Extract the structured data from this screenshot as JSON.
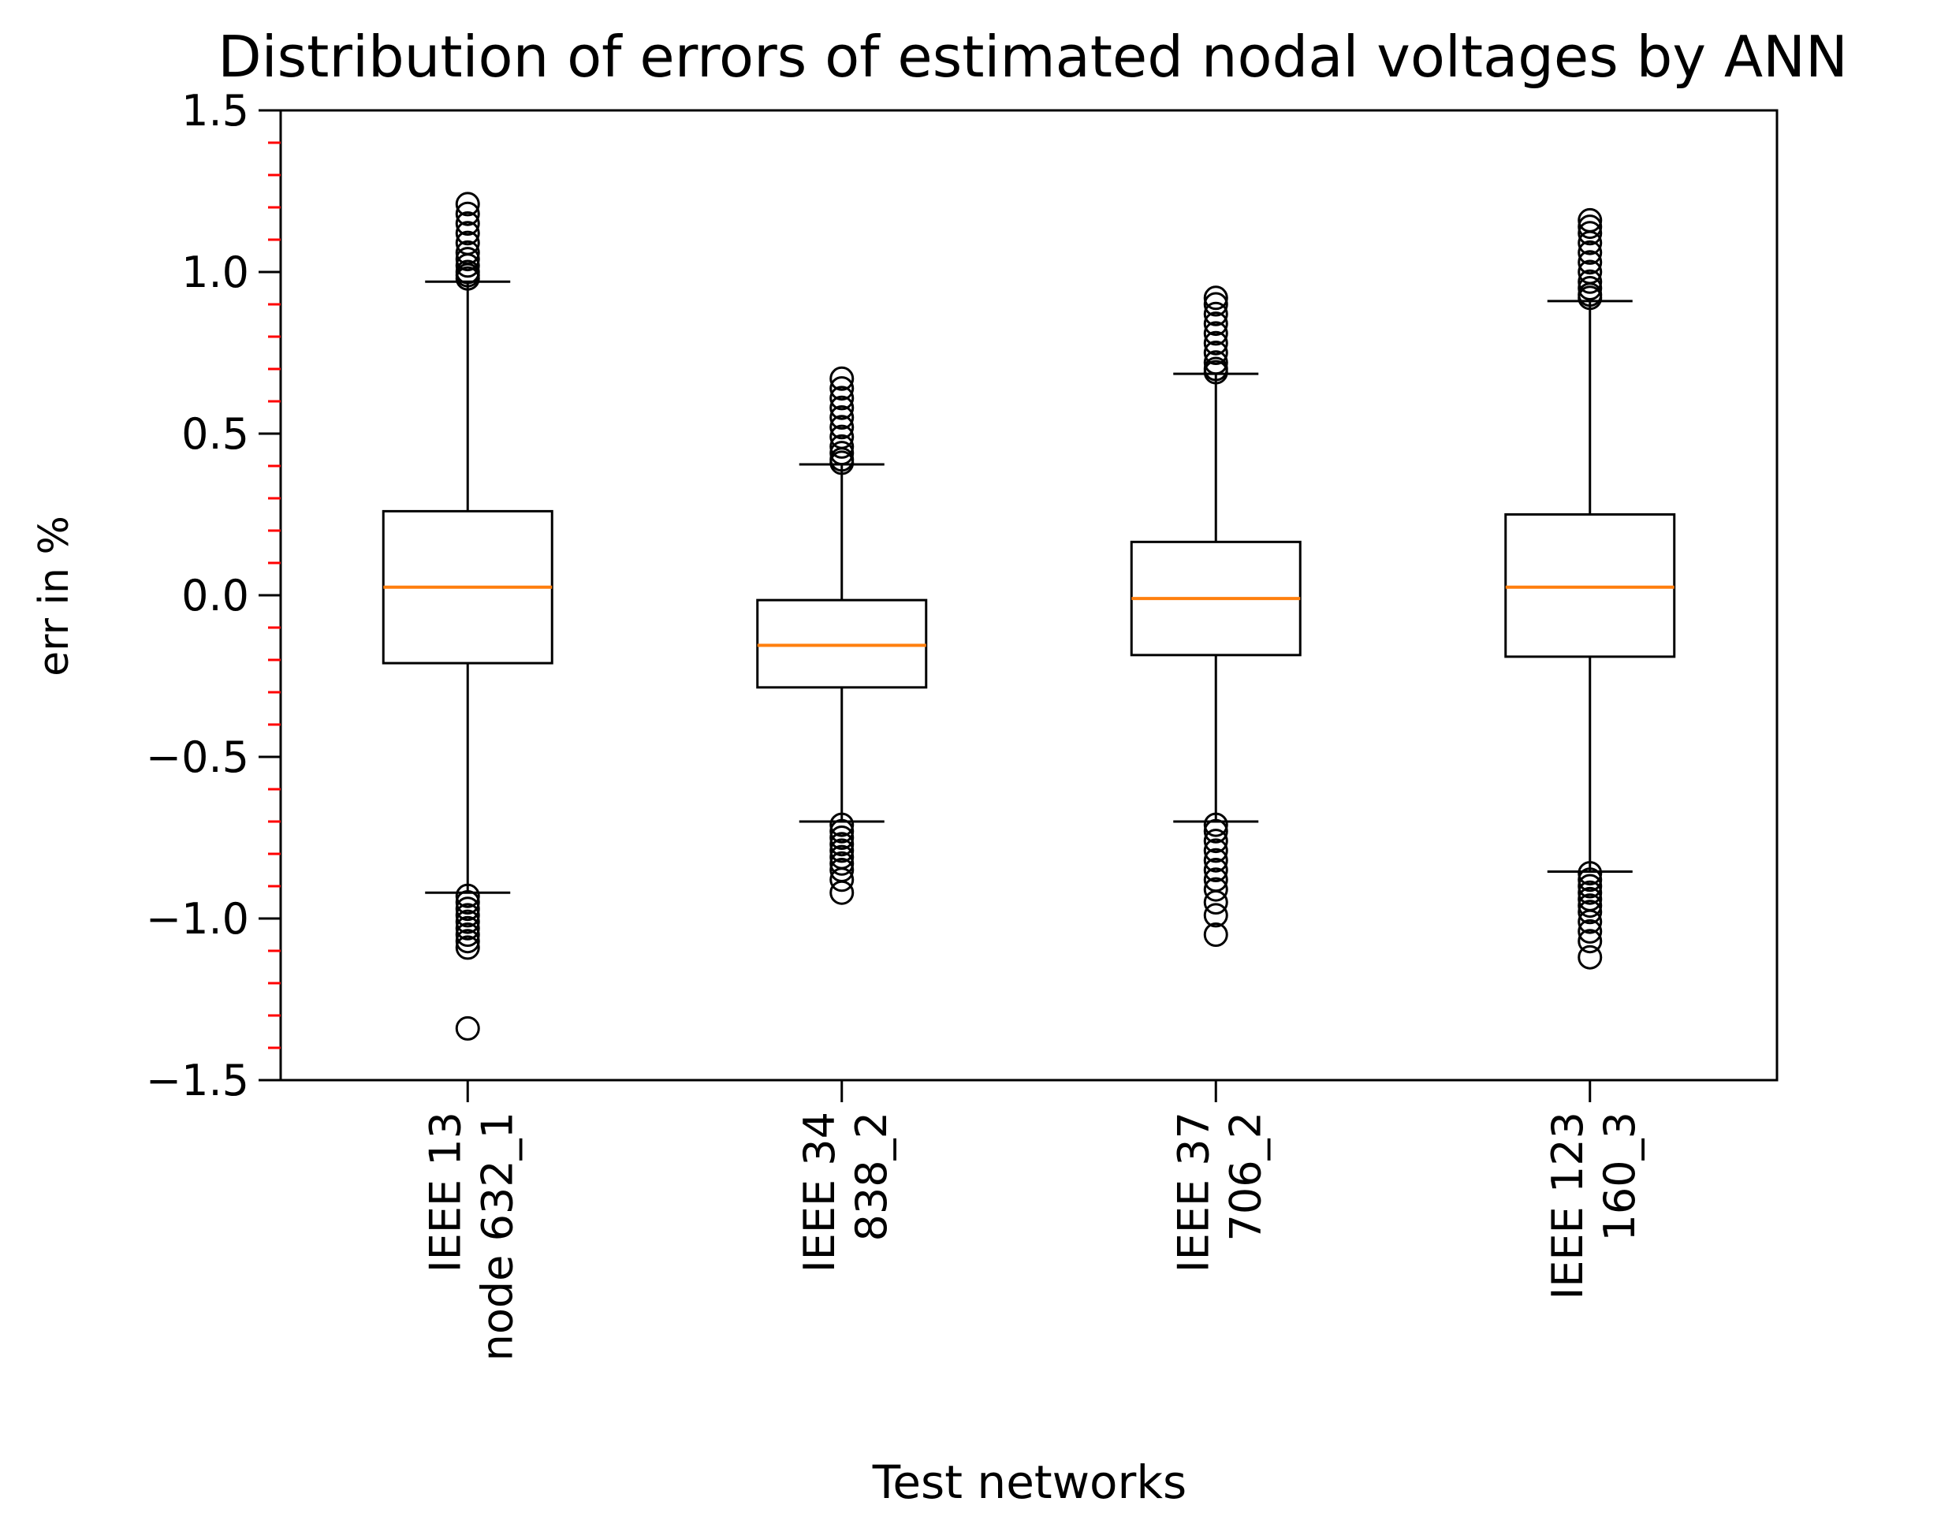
{
  "chart_data": {
    "type": "boxplot",
    "title": "Distribution of errors of estimated nodal voltages by ANN",
    "xlabel": "Test networks",
    "ylabel": "err in %",
    "ylim": [
      -1.5,
      1.5
    ],
    "yticks": [
      -1.5,
      -1.0,
      -0.5,
      0.0,
      0.5,
      1.0,
      1.5
    ],
    "ytick_labels": [
      "−1.5",
      "−1.0",
      "−0.5",
      "0.0",
      "0.5",
      "1.0",
      "1.5"
    ],
    "minor_ytick_step": 0.1,
    "minor_tick_color": "#ff0000",
    "median_color": "#ff7f0e",
    "categories": [
      {
        "line1": "IEEE 13",
        "line2": "node 632_1"
      },
      {
        "line1": "IEEE 34",
        "line2": "838_2"
      },
      {
        "line1": "IEEE 37",
        "line2": "706_2"
      },
      {
        "line1": "IEEE 123",
        "line2": "160_3"
      }
    ],
    "boxes": [
      {
        "whisker_low": -0.92,
        "q1": -0.21,
        "median": 0.025,
        "q3": 0.26,
        "whisker_high": 0.97,
        "outliers": [
          1.21,
          1.18,
          1.15,
          1.12,
          1.09,
          1.06,
          1.04,
          1.02,
          1.0,
          0.99,
          0.98,
          -0.93,
          -0.95,
          -0.97,
          -0.99,
          -1.01,
          -1.03,
          -1.05,
          -1.07,
          -1.09,
          -1.34
        ]
      },
      {
        "whisker_low": -0.7,
        "q1": -0.285,
        "median": -0.155,
        "q3": -0.015,
        "whisker_high": 0.405,
        "outliers": [
          0.67,
          0.64,
          0.61,
          0.58,
          0.55,
          0.52,
          0.49,
          0.46,
          0.44,
          0.42,
          0.41,
          -0.71,
          -0.73,
          -0.75,
          -0.77,
          -0.79,
          -0.81,
          -0.83,
          -0.85,
          -0.88,
          -0.92
        ]
      },
      {
        "whisker_low": -0.7,
        "q1": -0.185,
        "median": -0.01,
        "q3": 0.165,
        "whisker_high": 0.685,
        "outliers": [
          0.92,
          0.9,
          0.87,
          0.84,
          0.81,
          0.78,
          0.75,
          0.72,
          0.7,
          0.69,
          -0.71,
          -0.73,
          -0.76,
          -0.79,
          -0.82,
          -0.85,
          -0.88,
          -0.91,
          -0.95,
          -0.99,
          -1.05
        ]
      },
      {
        "whisker_low": -0.855,
        "q1": -0.19,
        "median": 0.025,
        "q3": 0.25,
        "whisker_high": 0.91,
        "outliers": [
          1.16,
          1.14,
          1.12,
          1.09,
          1.06,
          1.03,
          1.0,
          0.97,
          0.95,
          0.93,
          0.92,
          -0.86,
          -0.88,
          -0.9,
          -0.92,
          -0.94,
          -0.96,
          -0.98,
          -1.01,
          -1.04,
          -1.07,
          -1.12
        ]
      }
    ]
  }
}
